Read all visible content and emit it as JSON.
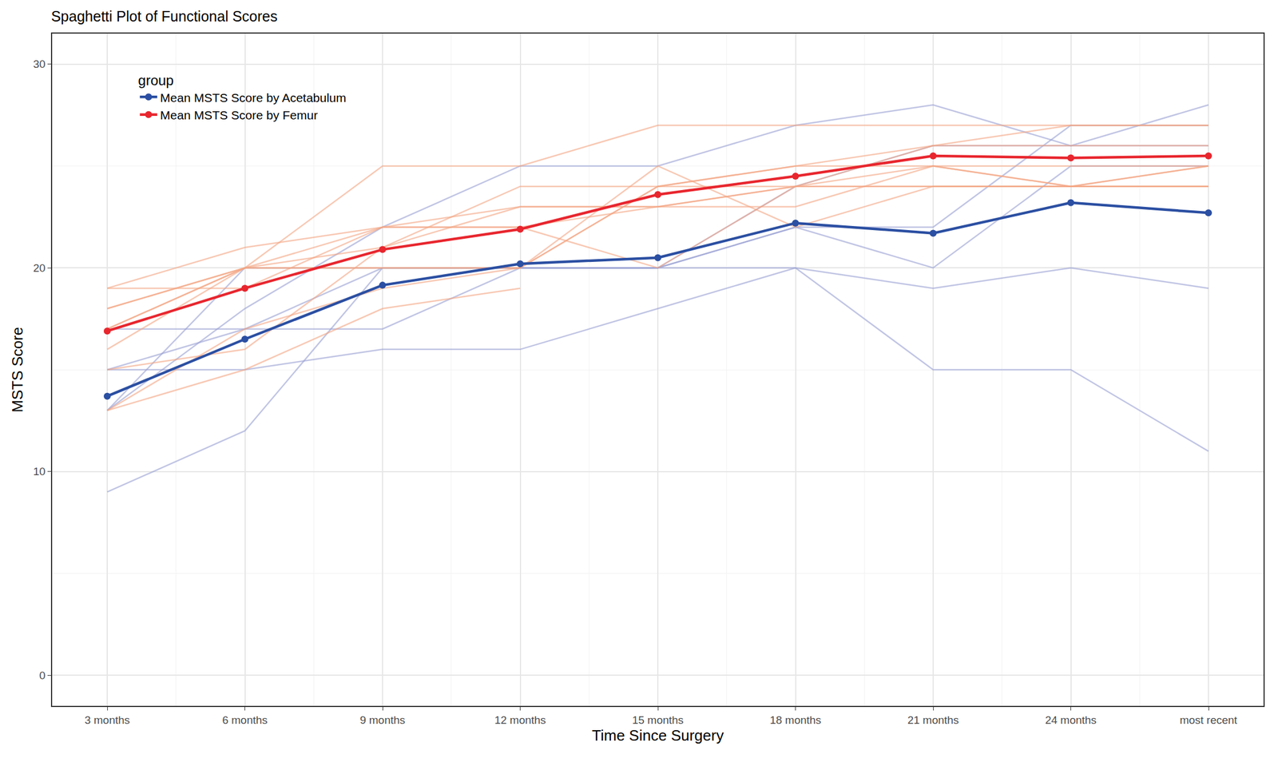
{
  "chart_data": {
    "type": "line",
    "title": "Spaghetti Plot of Functional Scores",
    "x_label": "Time Since Surgery",
    "y_label": "MSTS Score",
    "legend_title": "group",
    "legend": "top left",
    "grid": true,
    "categories": [
      "3 months",
      "6 months",
      "9 months",
      "12 months",
      "15 months",
      "18 months",
      "21 months",
      "24 months",
      "most recent"
    ],
    "ylim": [
      -1.5,
      31.5
    ],
    "yticks": [
      0,
      10,
      20,
      30
    ],
    "series": [
      {
        "color": "#98a0d3",
        "values": [
          9,
          12,
          20,
          20,
          20,
          20,
          15,
          15,
          11
        ]
      },
      {
        "color": "#98a0d3",
        "values": [
          15,
          15,
          16,
          16,
          18,
          20,
          19,
          20,
          19
        ]
      },
      {
        "color": "#98a0d3",
        "values": [
          17,
          17,
          17,
          20,
          20,
          22,
          22,
          27,
          27
        ]
      },
      {
        "color": "#98a0d3",
        "values": [
          13,
          18,
          22,
          25,
          25,
          27,
          28,
          26,
          28
        ]
      },
      {
        "color": "#98a0d3",
        "values": [
          13,
          20,
          20,
          20,
          20,
          24,
          26,
          26,
          26
        ]
      },
      {
        "color": "#98a0d3",
        "values": [
          15,
          17,
          20,
          20,
          20,
          22,
          20,
          25,
          25
        ]
      },
      {
        "color": "#f4a582",
        "values": [
          19,
          19,
          22,
          22,
          20,
          24,
          24,
          24,
          24
        ]
      },
      {
        "color": "#f4a582",
        "values": [
          18,
          20,
          25,
          25,
          27,
          27,
          27,
          27,
          27
        ]
      },
      {
        "color": "#f4a582",
        "values": [
          17,
          20,
          21,
          24,
          24,
          24,
          25,
          25,
          25
        ]
      },
      {
        "color": "#f4a582",
        "values": [
          16,
          20,
          20,
          20,
          24,
          25,
          25,
          24,
          25
        ]
      },
      {
        "color": "#f4a582",
        "values": [
          15,
          16,
          21,
          23,
          23,
          24,
          24,
          24,
          24
        ]
      },
      {
        "color": "#f4a582",
        "values": [
          13,
          15,
          18,
          19,
          null,
          null,
          null,
          null,
          null
        ]
      },
      {
        "color": "#f4a582",
        "values": [
          13,
          17,
          19,
          20,
          25,
          22,
          24,
          24,
          24
        ]
      },
      {
        "color": "#f4a582",
        "values": [
          19,
          21,
          22,
          22,
          23,
          23,
          25,
          24,
          25
        ]
      },
      {
        "color": "#f4a582",
        "values": [
          17,
          20,
          22,
          23,
          23,
          24,
          26,
          26,
          26
        ]
      },
      {
        "color": "#f4a582",
        "values": [
          18,
          20,
          20,
          20,
          24,
          25,
          26,
          27,
          27
        ]
      },
      {
        "name": "Mean MSTS Score by Acetabulum",
        "color": "#2b4fa2",
        "marker": "circle",
        "values": [
          13.7,
          16.5,
          19.15,
          20.2,
          20.5,
          22.2,
          21.7,
          23.2,
          22.7
        ]
      },
      {
        "name": "Mean MSTS Score by Femur",
        "color": "#e8262e",
        "marker": "circle",
        "values": [
          16.9,
          19.0,
          20.9,
          21.9,
          23.6,
          24.5,
          25.5,
          25.4,
          25.5
        ]
      }
    ]
  }
}
